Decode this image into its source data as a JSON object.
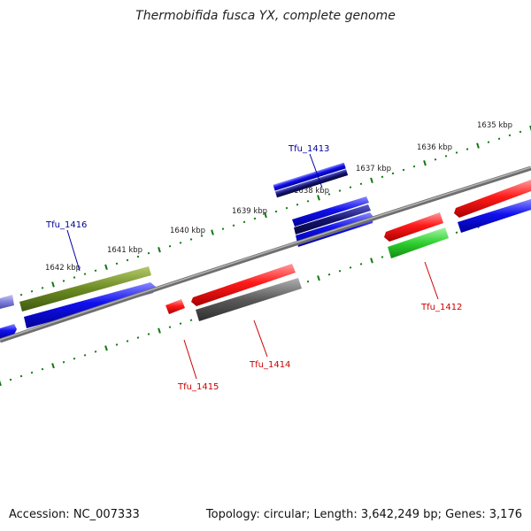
{
  "title": "Thermobifida fusca YX, complete genome",
  "footer": {
    "accession": "Accession: NC_007333",
    "summary": "Topology: circular; Length: 3,642,249 bp; Genes: 3,176"
  },
  "colors": {
    "forward_label": "#000099",
    "reverse_label": "#cc0000",
    "tick": "#117711",
    "backbone": "#808080"
  },
  "ticks": [
    {
      "label": "1635 kbp"
    },
    {
      "label": "1636 kbp"
    },
    {
      "label": "1637 kbp"
    },
    {
      "label": "1638 kbp"
    },
    {
      "label": "1639 kbp"
    },
    {
      "label": "1640 kbp"
    },
    {
      "label": "1641 kbp"
    },
    {
      "label": "1642 kbp"
    }
  ],
  "gene_labels": [
    {
      "name": "Tfu_1413",
      "strand": "forward"
    },
    {
      "name": "Tfu_1416",
      "strand": "forward"
    },
    {
      "name": "Tfu_1412",
      "strand": "reverse"
    },
    {
      "name": "Tfu_1414",
      "strand": "reverse"
    },
    {
      "name": "Tfu_1415",
      "strand": "reverse"
    }
  ]
}
